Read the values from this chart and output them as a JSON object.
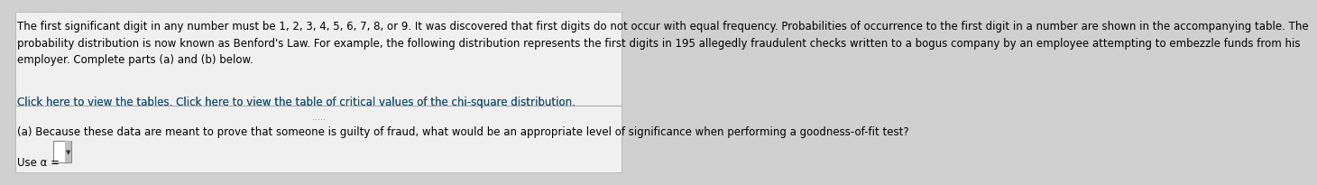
{
  "bg_color": "#d0d0d0",
  "panel_color": "#f0f0f0",
  "top_text": "The first significant digit in any number must be 1, 2, 3, 4, 5, 6, 7, 8, or 9. It was discovered that first digits do not occur with equal frequency. Probabilities of occurrence to the first digit in a number are shown in the accompanying table. The\nprobability distribution is now known as Benford's Law. For example, the following distribution represents the first digits in 195 allegedly fraudulent checks written to a bogus company by an employee attempting to embezzle funds from his\nemployer. Complete parts (a) and (b) below.",
  "link_text": "Click here to view the tables. Click here to view the table of critical values of the chi-square distribution.",
  "dots_text": ".....",
  "part_a_text": "(a) Because these data are meant to prove that someone is guilty of fraud, what would be an appropriate level of significance when performing a goodness-of-fit test?",
  "use_alpha_text": "Use α =",
  "text_color": "#000000",
  "link_color": "#1a5276",
  "font_size": 8.5,
  "link_font_size": 8.5,
  "part_a_font_size": 8.5
}
